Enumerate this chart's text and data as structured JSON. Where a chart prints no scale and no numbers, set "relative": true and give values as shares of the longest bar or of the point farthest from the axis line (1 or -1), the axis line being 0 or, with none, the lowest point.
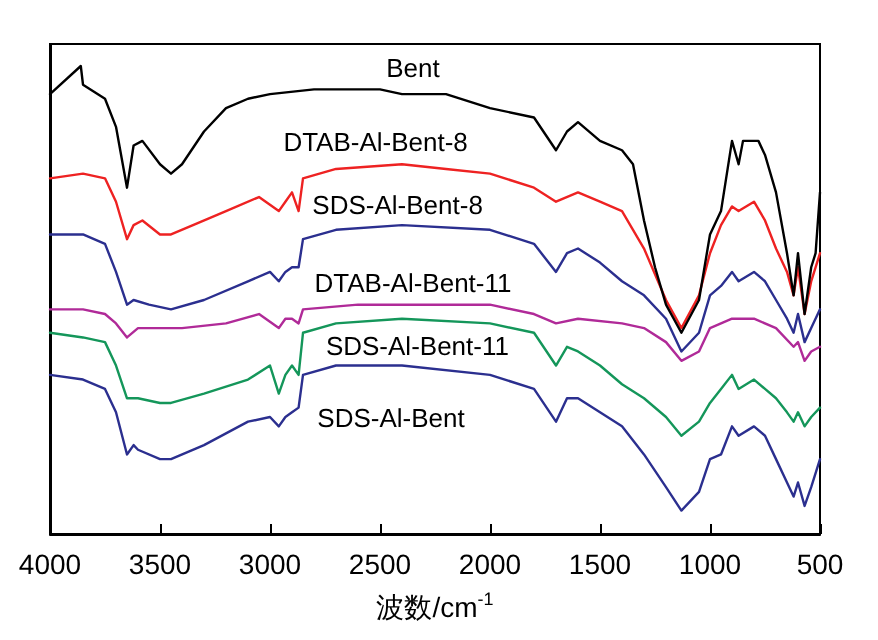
{
  "chart_data": {
    "type": "line",
    "xlabel": "波数/cm$^{-1}$",
    "relative": true,
    "xlim": [
      4000,
      500
    ],
    "xticks": [
      4000,
      3500,
      3000,
      2500,
      2000,
      1500,
      1000,
      500
    ],
    "grid": false,
    "legend": false,
    "marker": "none",
    "series": [
      {
        "name": "Bent",
        "color": "#000000",
        "x": [
          4000,
          3860,
          3850,
          3750,
          3700,
          3650,
          3620,
          3580,
          3500,
          3450,
          3400,
          3300,
          3200,
          3100,
          3000,
          2800,
          2500,
          2400,
          2200,
          2000,
          1800,
          1700,
          1650,
          1600,
          1500,
          1400,
          1350,
          1300,
          1250,
          1200,
          1130,
          1050,
          1000,
          950,
          900,
          870,
          850,
          780,
          750,
          700,
          650,
          620,
          600,
          570,
          540,
          520,
          500
        ],
        "values": [
          0.94,
          1.0,
          0.96,
          0.93,
          0.87,
          0.74,
          0.83,
          0.84,
          0.79,
          0.77,
          0.79,
          0.86,
          0.91,
          0.93,
          0.94,
          0.95,
          0.95,
          0.94,
          0.94,
          0.91,
          0.89,
          0.82,
          0.86,
          0.88,
          0.84,
          0.82,
          0.79,
          0.67,
          0.57,
          0.49,
          0.43,
          0.5,
          0.64,
          0.69,
          0.84,
          0.79,
          0.84,
          0.84,
          0.81,
          0.73,
          0.6,
          0.51,
          0.6,
          0.47,
          0.57,
          0.6,
          0.73
        ]
      },
      {
        "name": "DTAB-Al-Bent-8",
        "color": "#ee2222",
        "x": [
          4000,
          3850,
          3750,
          3700,
          3650,
          3620,
          3580,
          3500,
          3450,
          3350,
          3200,
          3050,
          2960,
          2930,
          2900,
          2870,
          2850,
          2700,
          2400,
          2200,
          2000,
          1800,
          1700,
          1600,
          1500,
          1400,
          1300,
          1200,
          1130,
          1050,
          1000,
          950,
          900,
          870,
          800,
          750,
          700,
          650,
          620,
          600,
          570,
          540,
          500
        ],
        "values": [
          0.76,
          0.77,
          0.76,
          0.71,
          0.63,
          0.66,
          0.67,
          0.64,
          0.64,
          0.66,
          0.69,
          0.72,
          0.69,
          0.71,
          0.73,
          0.69,
          0.76,
          0.78,
          0.79,
          0.78,
          0.77,
          0.74,
          0.71,
          0.73,
          0.71,
          0.69,
          0.61,
          0.5,
          0.44,
          0.51,
          0.6,
          0.66,
          0.7,
          0.69,
          0.71,
          0.67,
          0.61,
          0.56,
          0.51,
          0.57,
          0.47,
          0.54,
          0.6
        ]
      },
      {
        "name": "SDS-Al-Bent-8",
        "color": "#2b2f8f",
        "x": [
          4000,
          3850,
          3750,
          3700,
          3650,
          3620,
          3550,
          3450,
          3300,
          3100,
          3000,
          2960,
          2930,
          2900,
          2870,
          2850,
          2700,
          2400,
          2000,
          1800,
          1700,
          1650,
          1600,
          1500,
          1400,
          1300,
          1200,
          1130,
          1050,
          1000,
          950,
          900,
          870,
          800,
          750,
          700,
          650,
          620,
          600,
          570,
          540,
          500
        ],
        "values": [
          0.64,
          0.64,
          0.62,
          0.56,
          0.49,
          0.5,
          0.49,
          0.48,
          0.5,
          0.54,
          0.56,
          0.54,
          0.56,
          0.57,
          0.57,
          0.63,
          0.65,
          0.66,
          0.65,
          0.62,
          0.56,
          0.6,
          0.61,
          0.58,
          0.54,
          0.51,
          0.46,
          0.39,
          0.43,
          0.51,
          0.53,
          0.56,
          0.54,
          0.56,
          0.54,
          0.5,
          0.46,
          0.43,
          0.47,
          0.41,
          0.44,
          0.48
        ]
      },
      {
        "name": "DTAB-Al-Bent-11",
        "color": "#b02a98",
        "x": [
          4000,
          3850,
          3750,
          3700,
          3650,
          3600,
          3500,
          3400,
          3200,
          3050,
          2960,
          2930,
          2900,
          2870,
          2850,
          2600,
          2400,
          2000,
          1800,
          1700,
          1600,
          1400,
          1300,
          1200,
          1130,
          1050,
          1000,
          900,
          850,
          800,
          700,
          620,
          600,
          570,
          540,
          500
        ],
        "values": [
          0.48,
          0.48,
          0.47,
          0.45,
          0.42,
          0.44,
          0.44,
          0.44,
          0.45,
          0.47,
          0.44,
          0.46,
          0.46,
          0.45,
          0.48,
          0.49,
          0.49,
          0.49,
          0.47,
          0.45,
          0.46,
          0.45,
          0.44,
          0.41,
          0.37,
          0.39,
          0.44,
          0.46,
          0.46,
          0.46,
          0.44,
          0.4,
          0.41,
          0.37,
          0.39,
          0.4
        ]
      },
      {
        "name": "SDS-Al-Bent-11",
        "color": "#14965a",
        "x": [
          4000,
          3850,
          3750,
          3700,
          3650,
          3600,
          3500,
          3450,
          3300,
          3100,
          3000,
          2960,
          2930,
          2900,
          2870,
          2850,
          2700,
          2400,
          2000,
          1800,
          1700,
          1650,
          1600,
          1500,
          1400,
          1300,
          1200,
          1130,
          1050,
          1000,
          950,
          900,
          870,
          800,
          750,
          700,
          650,
          620,
          600,
          570,
          540,
          500
        ],
        "values": [
          0.43,
          0.42,
          0.41,
          0.36,
          0.29,
          0.29,
          0.28,
          0.28,
          0.3,
          0.33,
          0.36,
          0.3,
          0.34,
          0.36,
          0.34,
          0.43,
          0.45,
          0.46,
          0.45,
          0.43,
          0.36,
          0.4,
          0.39,
          0.36,
          0.32,
          0.29,
          0.25,
          0.21,
          0.24,
          0.28,
          0.31,
          0.34,
          0.31,
          0.33,
          0.31,
          0.29,
          0.26,
          0.24,
          0.26,
          0.23,
          0.25,
          0.27
        ]
      },
      {
        "name": "SDS-Al-Bent",
        "color": "#2b2f8f",
        "x": [
          4000,
          3850,
          3750,
          3700,
          3650,
          3620,
          3600,
          3500,
          3450,
          3300,
          3100,
          3000,
          2960,
          2930,
          2900,
          2870,
          2850,
          2700,
          2400,
          2000,
          1800,
          1700,
          1650,
          1600,
          1500,
          1400,
          1300,
          1200,
          1130,
          1050,
          1000,
          950,
          900,
          870,
          800,
          750,
          700,
          650,
          620,
          600,
          570,
          540,
          500
        ],
        "values": [
          0.34,
          0.33,
          0.31,
          0.26,
          0.17,
          0.19,
          0.18,
          0.16,
          0.16,
          0.19,
          0.24,
          0.25,
          0.23,
          0.25,
          0.26,
          0.27,
          0.34,
          0.36,
          0.36,
          0.34,
          0.31,
          0.24,
          0.29,
          0.29,
          0.26,
          0.23,
          0.17,
          0.1,
          0.05,
          0.09,
          0.16,
          0.17,
          0.23,
          0.21,
          0.23,
          0.21,
          0.16,
          0.11,
          0.08,
          0.11,
          0.06,
          0.1,
          0.16
        ]
      }
    ]
  }
}
